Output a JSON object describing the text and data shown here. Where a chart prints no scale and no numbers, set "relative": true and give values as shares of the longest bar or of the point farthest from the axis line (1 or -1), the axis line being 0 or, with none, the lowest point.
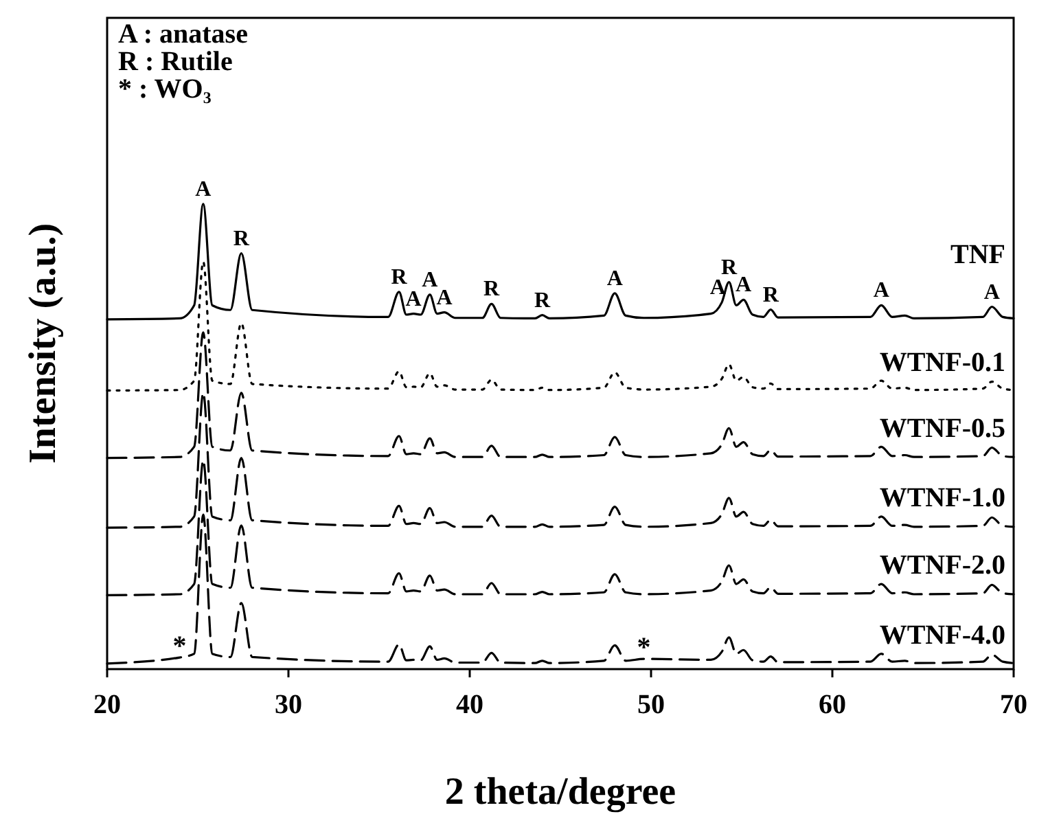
{
  "chart_data": {
    "type": "line",
    "relative": true,
    "xlabel": "2 theta/degree",
    "ylabel": "Intensity (a.u.)",
    "x": [
      20,
      24,
      24.8,
      25.3,
      25.8,
      26.8,
      27.4,
      28.0,
      35.5,
      36.1,
      36.5,
      36.9,
      37.3,
      37.8,
      38.2,
      38.6,
      39.2,
      40.7,
      41.2,
      41.7,
      43.6,
      44.0,
      44.4,
      47.4,
      48.0,
      48.6,
      49.6,
      53.3,
      53.9,
      54.3,
      54.7,
      55.1,
      55.6,
      56.2,
      56.6,
      57.0,
      62.1,
      62.7,
      63.3,
      64.0,
      64.5,
      68.3,
      68.8,
      69.4,
      70
    ],
    "xlim": [
      20,
      70
    ],
    "xticks": [
      20,
      30,
      40,
      50,
      60,
      70
    ],
    "tick_labels": "x",
    "grid": false,
    "series": [
      {
        "name": "TNF",
        "color": "#000000",
        "line_style": "solid",
        "values": [
          0.752,
          0.754,
          0.782,
          1.0,
          0.782,
          0.772,
          0.894,
          0.772,
          0.757,
          0.811,
          0.762,
          0.764,
          0.762,
          0.805,
          0.764,
          0.767,
          0.755,
          0.755,
          0.785,
          0.755,
          0.754,
          0.761,
          0.754,
          0.76,
          0.808,
          0.76,
          0.755,
          0.764,
          0.788,
          0.832,
          0.782,
          0.794,
          0.762,
          0.757,
          0.773,
          0.756,
          0.757,
          0.782,
          0.757,
          0.76,
          0.754,
          0.757,
          0.779,
          0.757,
          0.754
        ]
      },
      {
        "name": "WTNF-0.1",
        "color": "#000000",
        "line_style": "dotted",
        "values": [
          0.599,
          0.6,
          0.62,
          0.876,
          0.62,
          0.613,
          0.744,
          0.613,
          0.603,
          0.64,
          0.606,
          0.607,
          0.606,
          0.636,
          0.607,
          0.61,
          0.601,
          0.601,
          0.622,
          0.601,
          0.6,
          0.605,
          0.6,
          0.605,
          0.638,
          0.605,
          0.601,
          0.607,
          0.624,
          0.655,
          0.62,
          0.628,
          0.606,
          0.603,
          0.614,
          0.602,
          0.603,
          0.62,
          0.603,
          0.605,
          0.6,
          0.603,
          0.618,
          0.603,
          0.6
        ]
      },
      {
        "name": "WTNF-0.5",
        "color": "#000000",
        "line_style": "dashed",
        "values": [
          0.454,
          0.456,
          0.478,
          0.724,
          0.478,
          0.47,
          0.594,
          0.47,
          0.458,
          0.501,
          0.462,
          0.464,
          0.462,
          0.496,
          0.464,
          0.466,
          0.456,
          0.456,
          0.48,
          0.456,
          0.456,
          0.461,
          0.456,
          0.46,
          0.499,
          0.46,
          0.456,
          0.464,
          0.483,
          0.518,
          0.478,
          0.488,
          0.462,
          0.458,
          0.471,
          0.457,
          0.458,
          0.478,
          0.458,
          0.46,
          0.456,
          0.458,
          0.476,
          0.458,
          0.456
        ]
      },
      {
        "name": "WTNF-1.0",
        "color": "#000000",
        "line_style": "dashed",
        "values": [
          0.304,
          0.306,
          0.328,
          0.594,
          0.328,
          0.32,
          0.454,
          0.32,
          0.308,
          0.351,
          0.312,
          0.314,
          0.312,
          0.346,
          0.314,
          0.316,
          0.306,
          0.306,
          0.33,
          0.306,
          0.306,
          0.311,
          0.306,
          0.31,
          0.349,
          0.31,
          0.306,
          0.314,
          0.333,
          0.368,
          0.328,
          0.338,
          0.312,
          0.308,
          0.321,
          0.307,
          0.308,
          0.328,
          0.308,
          0.31,
          0.306,
          0.308,
          0.326,
          0.308,
          0.306
        ]
      },
      {
        "name": "WTNF-2.0",
        "color": "#000000",
        "line_style": "dashed",
        "values": [
          0.159,
          0.161,
          0.183,
          0.449,
          0.183,
          0.175,
          0.309,
          0.175,
          0.163,
          0.206,
          0.167,
          0.169,
          0.167,
          0.201,
          0.169,
          0.171,
          0.161,
          0.161,
          0.185,
          0.161,
          0.161,
          0.166,
          0.161,
          0.165,
          0.204,
          0.165,
          0.161,
          0.169,
          0.188,
          0.223,
          0.183,
          0.193,
          0.167,
          0.163,
          0.176,
          0.162,
          0.163,
          0.183,
          0.163,
          0.165,
          0.161,
          0.163,
          0.181,
          0.163,
          0.161
        ]
      },
      {
        "name": "WTNF-4.0",
        "color": "#000000",
        "line_style": "dashed",
        "values": [
          0.012,
          0.025,
          0.033,
          0.332,
          0.033,
          0.026,
          0.142,
          0.026,
          0.016,
          0.053,
          0.019,
          0.02,
          0.019,
          0.049,
          0.02,
          0.023,
          0.014,
          0.014,
          0.035,
          0.014,
          0.013,
          0.018,
          0.013,
          0.018,
          0.051,
          0.018,
          0.022,
          0.02,
          0.037,
          0.068,
          0.033,
          0.041,
          0.019,
          0.016,
          0.027,
          0.015,
          0.016,
          0.033,
          0.016,
          0.018,
          0.013,
          0.016,
          0.031,
          0.016,
          0.013
        ]
      }
    ],
    "annotations": [
      "A : anatase",
      "R : Rutile",
      "* : WO₃",
      {
        "text": "A",
        "x": 25.3,
        "y": 1.0
      },
      {
        "text": "R",
        "x": 27.4,
        "y": 0.894
      },
      {
        "text": "R",
        "x": 36.1,
        "y": 0.811
      },
      {
        "text": "A",
        "x": 36.9,
        "y": 0.764
      },
      {
        "text": "A",
        "x": 37.8,
        "y": 0.805
      },
      {
        "text": "A",
        "x": 38.6,
        "y": 0.767
      },
      {
        "text": "R",
        "x": 41.2,
        "y": 0.785
      },
      {
        "text": "R",
        "x": 44.0,
        "y": 0.761
      },
      {
        "text": "A",
        "x": 48.0,
        "y": 0.808
      },
      {
        "text": "A",
        "x": 53.9,
        "y": 0.788
      },
      {
        "text": "R",
        "x": 54.3,
        "y": 0.832
      },
      {
        "text": "A",
        "x": 55.1,
        "y": 0.794
      },
      {
        "text": "R",
        "x": 56.6,
        "y": 0.773
      },
      {
        "text": "A",
        "x": 62.7,
        "y": 0.782
      },
      {
        "text": "A",
        "x": 68.8,
        "y": 0.779
      },
      {
        "text": "*",
        "x": 24.0,
        "y": 0.025
      },
      {
        "text": "*",
        "x": 49.6,
        "y": 0.022
      }
    ]
  }
}
